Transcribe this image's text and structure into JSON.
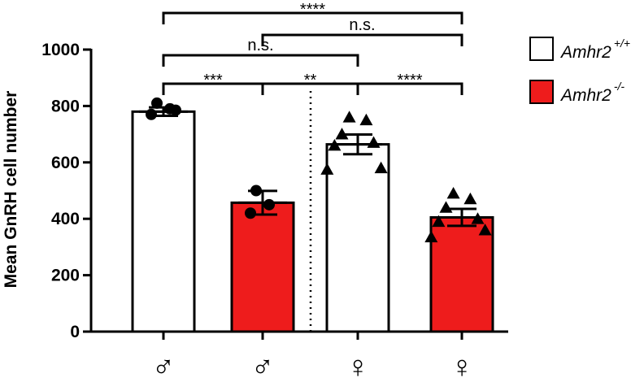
{
  "chart_data": {
    "type": "bar",
    "ylabel": "Mean GnRH cell number",
    "ylim": [
      0,
      1000
    ],
    "yticks": [
      0,
      200,
      400,
      600,
      800,
      1000
    ],
    "categories": [
      "♂",
      "♂",
      "♀",
      "♀"
    ],
    "series": [
      {
        "name": "Amhr2 +/+",
        "legend_main": "Amhr2",
        "legend_sup": "+/+",
        "color": "#ffffff"
      },
      {
        "name": "Amhr2 -/-",
        "legend_main": "Amhr2",
        "legend_sup": "-/-",
        "color": "#ee1c1c"
      }
    ],
    "bars": [
      {
        "category": "♂",
        "genotype": "Amhr2 +/+",
        "value": 780,
        "sem": 15,
        "marker": "circle",
        "points": [
          810,
          790,
          770,
          785
        ]
      },
      {
        "category": "♂",
        "genotype": "Amhr2 -/-",
        "value": 457,
        "sem": 42,
        "marker": "circle",
        "points": [
          500,
          450,
          420
        ]
      },
      {
        "category": "♀",
        "genotype": "Amhr2 +/+",
        "value": 664,
        "sem": 35,
        "marker": "triangle",
        "points": [
          760,
          750,
          700,
          670,
          660,
          580,
          575
        ]
      },
      {
        "category": "♀",
        "genotype": "Amhr2 -/-",
        "value": 405,
        "sem": 30,
        "marker": "triangle",
        "points": [
          490,
          470,
          440,
          400,
          390,
          360,
          335
        ]
      }
    ],
    "comparisons": [
      {
        "from": 0,
        "to": 3,
        "label": "****"
      },
      {
        "from": 1,
        "to": 3,
        "label": "n.s."
      },
      {
        "from": 0,
        "to": 2,
        "label": "n.s."
      },
      {
        "from": 0,
        "to": 1,
        "label": "***"
      },
      {
        "from": 1,
        "to": 2,
        "label": "**"
      },
      {
        "from": 2,
        "to": 3,
        "label": "****"
      }
    ],
    "legend_position": "top-right"
  }
}
